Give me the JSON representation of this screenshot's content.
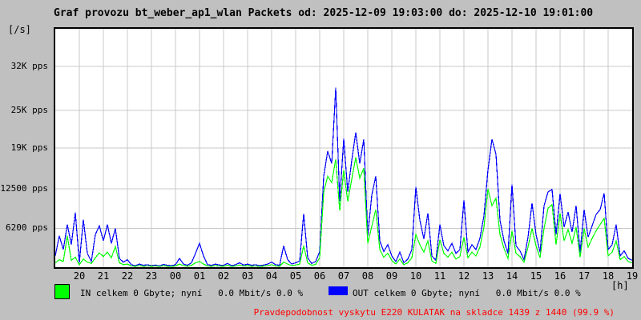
{
  "title": "Graf provozu bt_weber_ap1_wlan Packets od: 2025-12-09 19:03:00 do: 2025-12-10 19:01:00",
  "y_unit_label": "[/s]",
  "x_unit_label": "[h]",
  "legend": {
    "in_label": "IN celkem 0 Gbyte; nyní   0.0 Mbit/s 0.0 %",
    "out_label": "OUT celkem 0 Gbyte; nyní   0.0 Mbit/s 0.0 %",
    "in_color": "#00ff00",
    "out_color": "#0000ff"
  },
  "footer_note": "Pravdepodobnost vyskytu E220 KULATAK na skladce 1439 z 1440 (99.9 %)",
  "footer_note_color": "#ff0000",
  "chart_data": {
    "type": "line",
    "title": "Graf provozu bt_weber_ap1_wlan Packets od: 2025-12-09 19:03:00 do: 2025-12-10 19:01:00",
    "xlabel": "[h]",
    "ylabel": "[/s] packets per second",
    "time_start": "2025-12-09 19:03:00",
    "time_end": "2025-12-10 19:01:00",
    "sample_interval_minutes": 10,
    "grid": true,
    "legend_position": "bottom",
    "plot_bg": "#ffffff",
    "grid_color": "#c9c9c9",
    "x_tick_labels": [
      "20",
      "21",
      "22",
      "23",
      "00",
      "01",
      "02",
      "03",
      "04",
      "05",
      "06",
      "07",
      "08",
      "09",
      "10",
      "11",
      "12",
      "13",
      "14",
      "15",
      "16",
      "17",
      "18",
      "19"
    ],
    "y_ticks": [
      {
        "value": 6200,
        "label": "6200 pps"
      },
      {
        "value": 12500,
        "label": "12500 pps"
      },
      {
        "value": 19000,
        "label": "19K pps"
      },
      {
        "value": 25000,
        "label": "25K pps"
      },
      {
        "value": 32000,
        "label": "32K pps"
      }
    ],
    "ylim": [
      0,
      38000
    ],
    "series": [
      {
        "name": "OUT",
        "color": "#0000ff",
        "values": [
          1800,
          5000,
          2800,
          6800,
          3600,
          8700,
          700,
          7600,
          2200,
          900,
          5200,
          6600,
          4200,
          6800,
          3800,
          6200,
          1400,
          800,
          1200,
          400,
          250,
          500,
          300,
          400,
          250,
          350,
          200,
          450,
          300,
          250,
          400,
          1400,
          500,
          300,
          700,
          2200,
          3800,
          1800,
          400,
          300,
          500,
          350,
          300,
          600,
          250,
          400,
          700,
          350,
          500,
          300,
          400,
          250,
          350,
          500,
          800,
          400,
          300,
          3400,
          1200,
          500,
          700,
          1000,
          8500,
          1500,
          600,
          900,
          2500,
          14500,
          18500,
          16500,
          28600,
          10500,
          20500,
          12000,
          17000,
          21500,
          16500,
          20400,
          5000,
          11500,
          14500,
          4200,
          2500,
          3600,
          1800,
          900,
          2400,
          700,
          1300,
          2800,
          12800,
          7500,
          4500,
          8600,
          1800,
          1100,
          6800,
          3400,
          2600,
          3800,
          2200,
          2800,
          10700,
          2400,
          3600,
          2800,
          4600,
          8200,
          15500,
          20400,
          18000,
          7500,
          4200,
          2200,
          13200,
          3400,
          2600,
          1200,
          4800,
          10200,
          5200,
          2400,
          9800,
          12000,
          12400,
          5200,
          11700,
          6400,
          8800,
          5600,
          9800,
          2400,
          9200,
          4800,
          6600,
          8400,
          9200,
          11800,
          2800,
          3600,
          6800,
          1800,
          2600,
          1400,
          1100
        ]
      },
      {
        "name": "IN",
        "color": "#00ff00",
        "values": [
          700,
          1200,
          900,
          5000,
          1100,
          1600,
          400,
          1300,
          800,
          600,
          1500,
          2300,
          1700,
          2400,
          1500,
          3300,
          700,
          400,
          500,
          200,
          150,
          250,
          150,
          200,
          150,
          200,
          120,
          250,
          150,
          130,
          200,
          500,
          250,
          150,
          300,
          700,
          900,
          500,
          200,
          150,
          250,
          180,
          150,
          300,
          120,
          200,
          350,
          180,
          250,
          150,
          200,
          130,
          180,
          250,
          400,
          200,
          150,
          800,
          500,
          250,
          350,
          500,
          3400,
          700,
          300,
          450,
          1500,
          12000,
          14500,
          13500,
          17200,
          9000,
          15500,
          10500,
          14000,
          17500,
          14200,
          15800,
          3800,
          6500,
          9200,
          2800,
          1600,
          2200,
          1100,
          500,
          1300,
          400,
          700,
          1500,
          5200,
          3600,
          2400,
          4200,
          1000,
          600,
          4400,
          2200,
          1600,
          2400,
          1300,
          1700,
          4800,
          1500,
          2400,
          1800,
          3200,
          6400,
          12500,
          9800,
          11000,
          5200,
          3000,
          1400,
          5800,
          2200,
          1700,
          800,
          3200,
          6200,
          3400,
          1500,
          6200,
          9400,
          10000,
          3600,
          8600,
          4200,
          6000,
          3800,
          6400,
          1600,
          6200,
          3200,
          4600,
          5800,
          6800,
          7800,
          1800,
          2400,
          4200,
          1200,
          1700,
          900,
          700
        ]
      }
    ]
  }
}
